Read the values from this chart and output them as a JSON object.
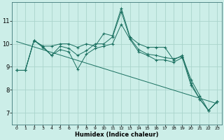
{
  "xlabel": "Humidex (Indice chaleur)",
  "background_color": "#cceee8",
  "grid_color": "#aad4cc",
  "line_color": "#1a7060",
  "xlim": [
    -0.5,
    23.5
  ],
  "ylim": [
    6.5,
    11.8
  ],
  "xticks": [
    0,
    1,
    2,
    3,
    4,
    5,
    6,
    7,
    8,
    9,
    10,
    11,
    12,
    13,
    14,
    15,
    16,
    17,
    18,
    19,
    20,
    21,
    22,
    23
  ],
  "yticks": [
    7,
    8,
    9,
    10,
    11
  ],
  "series": [
    {
      "x": [
        0,
        1,
        2,
        3,
        4,
        5,
        6,
        7,
        8,
        9,
        10,
        11,
        12,
        13,
        14,
        15,
        16,
        17,
        18,
        19,
        20,
        21,
        22,
        23
      ],
      "y": [
        8.85,
        8.85,
        10.15,
        9.9,
        9.9,
        10.0,
        10.0,
        9.85,
        10.0,
        9.9,
        10.45,
        10.35,
        11.55,
        10.3,
        10.0,
        9.85,
        9.85,
        9.85,
        9.3,
        9.5,
        8.3,
        7.6,
        7.1,
        7.5
      ],
      "marker": true
    },
    {
      "x": [
        0,
        1,
        2,
        3,
        4,
        5,
        6,
        7,
        8,
        9,
        10,
        11,
        12,
        13,
        14,
        15,
        16,
        17,
        18,
        19,
        20,
        21,
        22,
        23
      ],
      "y": [
        8.85,
        8.85,
        10.15,
        9.9,
        9.5,
        9.9,
        9.8,
        9.5,
        9.7,
        10.0,
        10.0,
        10.3,
        11.4,
        10.25,
        9.75,
        9.55,
        9.5,
        9.4,
        9.35,
        9.45,
        8.45,
        7.75,
        7.1,
        7.5
      ],
      "marker": true
    },
    {
      "x": [
        0,
        1,
        2,
        3,
        4,
        5,
        6,
        7,
        8,
        9,
        10,
        11,
        12,
        13,
        14,
        15,
        16,
        17,
        18,
        19,
        20,
        21,
        22,
        23
      ],
      "y": [
        8.85,
        8.85,
        10.15,
        9.85,
        9.5,
        9.75,
        9.65,
        8.9,
        9.55,
        9.8,
        9.9,
        10.0,
        10.85,
        10.2,
        9.65,
        9.5,
        9.3,
        9.3,
        9.2,
        9.4,
        8.2,
        7.6,
        7.1,
        7.5
      ],
      "marker": true
    },
    {
      "x": [
        0,
        23
      ],
      "y": [
        10.1,
        7.4
      ],
      "marker": false
    }
  ]
}
